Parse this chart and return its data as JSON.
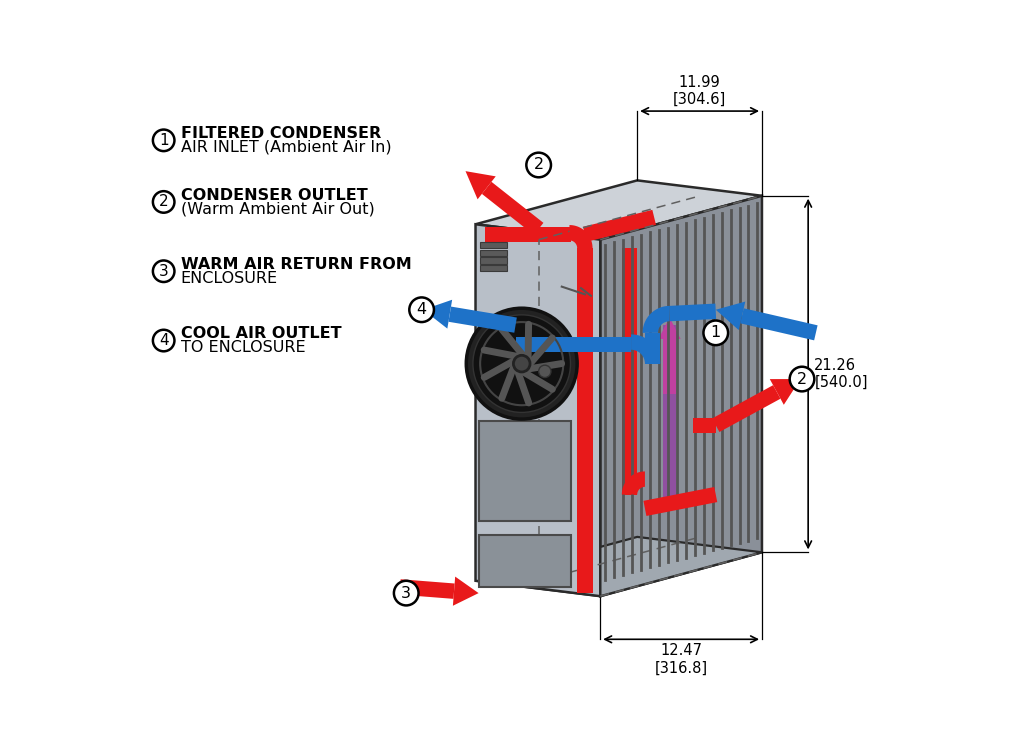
{
  "bg_color": "#ffffff",
  "legend_items": [
    {
      "num": "1",
      "line1": "FILTERED CONDENSER",
      "line2": "AIR INLET (Ambient Air In)"
    },
    {
      "num": "2",
      "line1": "CONDENSER OUTLET",
      "line2": "(Warm Ambient Air Out)"
    },
    {
      "num": "3",
      "line1": "WARM AIR RETURN FROM",
      "line2": "ENCLOSURE"
    },
    {
      "num": "4",
      "line1": "COOL AIR OUTLET",
      "line2": "TO ENCLOSURE"
    }
  ],
  "dim_top": "11.99\n[304.6]",
  "dim_right": "21.26\n[540.0]",
  "dim_bottom": "12.47\n[316.8]",
  "red_color": "#e8191a",
  "blue_color": "#1e72c8",
  "face_left_color": "#b8bfc8",
  "face_right_color": "#8a9099",
  "face_top_color": "#cdd2d8",
  "face_bottom_color": "#a0a8b0",
  "grill_color": "#555555",
  "edge_color": "#2a2a2a",
  "dash_color": "#606060",
  "panel_color": "#8a9198",
  "fan_outer": "#222222",
  "fan_inner": "#111111",
  "fan_blade": "#555555"
}
